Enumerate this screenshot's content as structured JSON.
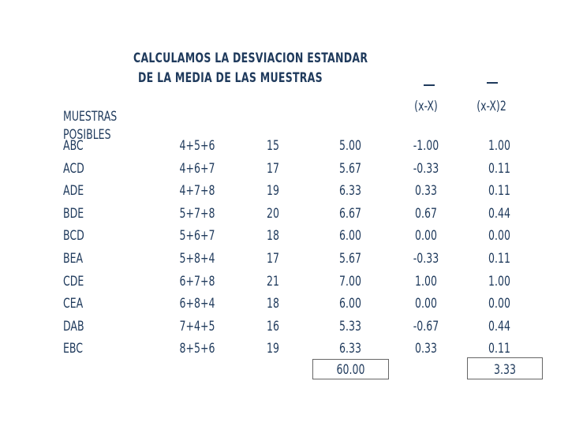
{
  "title": {
    "line1": "CALCULAMOS LA DESVIACION ESTANDAR",
    "line2": "DE LA MEDIA DE LAS MUESTRAS"
  },
  "headers": {
    "muestras_line1": "MUESTRAS",
    "muestras_line2": "POSIBLES",
    "dev": "(x-X)",
    "dev_sq": "(x-X)2"
  },
  "rows": [
    {
      "sample": "ABC",
      "expr": "4+5+6",
      "sum": "15",
      "mean": "5.00",
      "dev": "-1.00",
      "dev_sq": "1.00"
    },
    {
      "sample": "ACD",
      "expr": "4+6+7",
      "sum": "17",
      "mean": "5.67",
      "dev": "-0.33",
      "dev_sq": "0.11"
    },
    {
      "sample": "ADE",
      "expr": "4+7+8",
      "sum": "19",
      "mean": "6.33",
      "dev": "0.33",
      "dev_sq": "0.11"
    },
    {
      "sample": "BDE",
      "expr": "5+7+8",
      "sum": "20",
      "mean": "6.67",
      "dev": "0.67",
      "dev_sq": "0.44"
    },
    {
      "sample": "BCD",
      "expr": "5+6+7",
      "sum": "18",
      "mean": "6.00",
      "dev": "0.00",
      "dev_sq": "0.00"
    },
    {
      "sample": "BEA",
      "expr": "5+8+4",
      "sum": "17",
      "mean": "5.67",
      "dev": "-0.33",
      "dev_sq": "0.11"
    },
    {
      "sample": "CDE",
      "expr": "6+7+8",
      "sum": "21",
      "mean": "7.00",
      "dev": "1.00",
      "dev_sq": "1.00"
    },
    {
      "sample": "CEA",
      "expr": "6+8+4",
      "sum": "18",
      "mean": "6.00",
      "dev": "0.00",
      "dev_sq": "0.00"
    },
    {
      "sample": "DAB",
      "expr": "7+4+5",
      "sum": "16",
      "mean": "5.33",
      "dev": "-0.67",
      "dev_sq": "0.44"
    },
    {
      "sample": "EBC",
      "expr": "8+5+6",
      "sum": "19",
      "mean": "6.33",
      "dev": "0.33",
      "dev_sq": "0.11"
    }
  ],
  "totals": {
    "mean_total": "60.00",
    "dev_sq_total": "3.33"
  }
}
